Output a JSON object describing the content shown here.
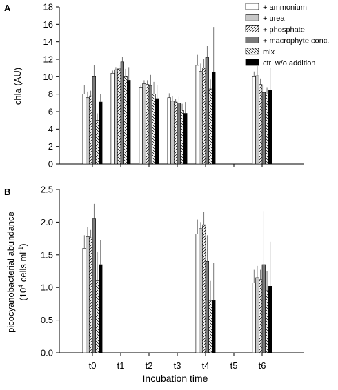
{
  "chart_data": [
    {
      "type": "bar",
      "panel_label": "A",
      "ylabel": "chla (AU)",
      "xlabel": "",
      "ylim": [
        0,
        18
      ],
      "yticks": [
        "0",
        "2",
        "4",
        "6",
        "8",
        "10",
        "12",
        "14",
        "16",
        "18"
      ],
      "categories": [
        "t0",
        "t1",
        "t2",
        "t3",
        "t4",
        "t5",
        "t6"
      ],
      "show_x_tick_labels": false,
      "grid": false,
      "legend_position": "top-right",
      "error_bars": true,
      "series": [
        {
          "name": "+ ammonium",
          "fill": "#ffffff",
          "pattern": "none",
          "values": [
            8.0,
            10.4,
            8.8,
            7.6,
            11.3,
            null,
            10.0
          ],
          "errors": [
            1.0,
            0.3,
            0.3,
            0.5,
            1.2,
            null,
            0.6
          ]
        },
        {
          "name": "+ urea",
          "fill": "#c8c8c8",
          "pattern": "none",
          "values": [
            7.6,
            10.8,
            9.2,
            7.2,
            10.6,
            null,
            10.1
          ],
          "errors": [
            0.7,
            0.3,
            0.4,
            0.6,
            0.9,
            null,
            1.1
          ]
        },
        {
          "name": "+ phosphate",
          "fill": "#ffffff",
          "pattern": "hatch-fwd",
          "values": [
            7.8,
            10.9,
            9.1,
            7.1,
            11.0,
            null,
            9.1
          ],
          "errors": [
            0.6,
            0.4,
            0.5,
            0.4,
            1.0,
            null,
            0.7
          ]
        },
        {
          "name": "+ macrophyte conc.",
          "fill": "#7a7a7a",
          "pattern": "none",
          "values": [
            10.0,
            11.7,
            9.0,
            7.0,
            12.2,
            null,
            8.2
          ],
          "errors": [
            1.3,
            0.6,
            1.2,
            0.7,
            1.3,
            null,
            0.9
          ]
        },
        {
          "name": "mix",
          "fill": "#ffffff",
          "pattern": "hatch-back",
          "values": [
            5.0,
            10.0,
            8.0,
            6.2,
            8.6,
            null,
            8.0
          ],
          "errors": [
            0.8,
            0.9,
            1.4,
            0.7,
            1.1,
            null,
            0.8
          ]
        },
        {
          "name": "ctrl w/o addition",
          "fill": "#000000",
          "pattern": "none",
          "values": [
            7.1,
            9.6,
            7.5,
            5.8,
            10.5,
            null,
            8.5
          ],
          "errors": [
            0.9,
            1.5,
            1.5,
            1.3,
            5.2,
            null,
            2.5
          ]
        }
      ]
    },
    {
      "type": "bar",
      "panel_label": "B",
      "ylabel_line1": "picocyanobacterial abundance",
      "ylabel_line2": "(10",
      "ylabel_sup1": "4",
      "ylabel_line2b": " cells ml",
      "ylabel_sup2": "-1",
      "ylabel_line2c": ")",
      "xlabel": "Incubation time",
      "ylim": [
        0,
        2.5
      ],
      "yticks": [
        "0.0",
        "0.5",
        "1.0",
        "1.5",
        "2.0",
        "2.5"
      ],
      "categories": [
        "t0",
        "t1",
        "t2",
        "t3",
        "t4",
        "t5",
        "t6"
      ],
      "grid": false,
      "error_bars": true,
      "series": [
        {
          "name": "+ ammonium",
          "values": [
            1.6,
            null,
            null,
            null,
            1.82,
            null,
            1.07
          ],
          "errors": [
            0.2,
            null,
            null,
            null,
            0.22,
            null,
            0.2
          ]
        },
        {
          "name": "+ urea",
          "values": [
            1.78,
            null,
            null,
            null,
            1.9,
            null,
            1.15
          ],
          "errors": [
            0.15,
            null,
            null,
            null,
            0.1,
            null,
            0.18
          ]
        },
        {
          "name": "+ phosphate",
          "values": [
            1.76,
            null,
            null,
            null,
            1.96,
            null,
            1.12
          ],
          "errors": [
            0.12,
            null,
            null,
            null,
            0.2,
            null,
            0.15
          ]
        },
        {
          "name": "+ macrophyte conc.",
          "values": [
            2.05,
            null,
            null,
            null,
            1.4,
            null,
            1.35
          ],
          "errors": [
            0.23,
            null,
            null,
            null,
            0.4,
            null,
            0.82
          ]
        },
        {
          "name": "mix",
          "values": [
            1.1,
            null,
            null,
            null,
            0.8,
            null,
            0.95
          ],
          "errors": [
            0.45,
            null,
            null,
            null,
            0.3,
            null,
            0.3
          ]
        },
        {
          "name": "ctrl w/o addition",
          "values": [
            1.35,
            null,
            null,
            null,
            0.8,
            null,
            1.02
          ],
          "errors": [
            0.38,
            null,
            null,
            null,
            0.58,
            null,
            0.68
          ]
        }
      ]
    }
  ]
}
